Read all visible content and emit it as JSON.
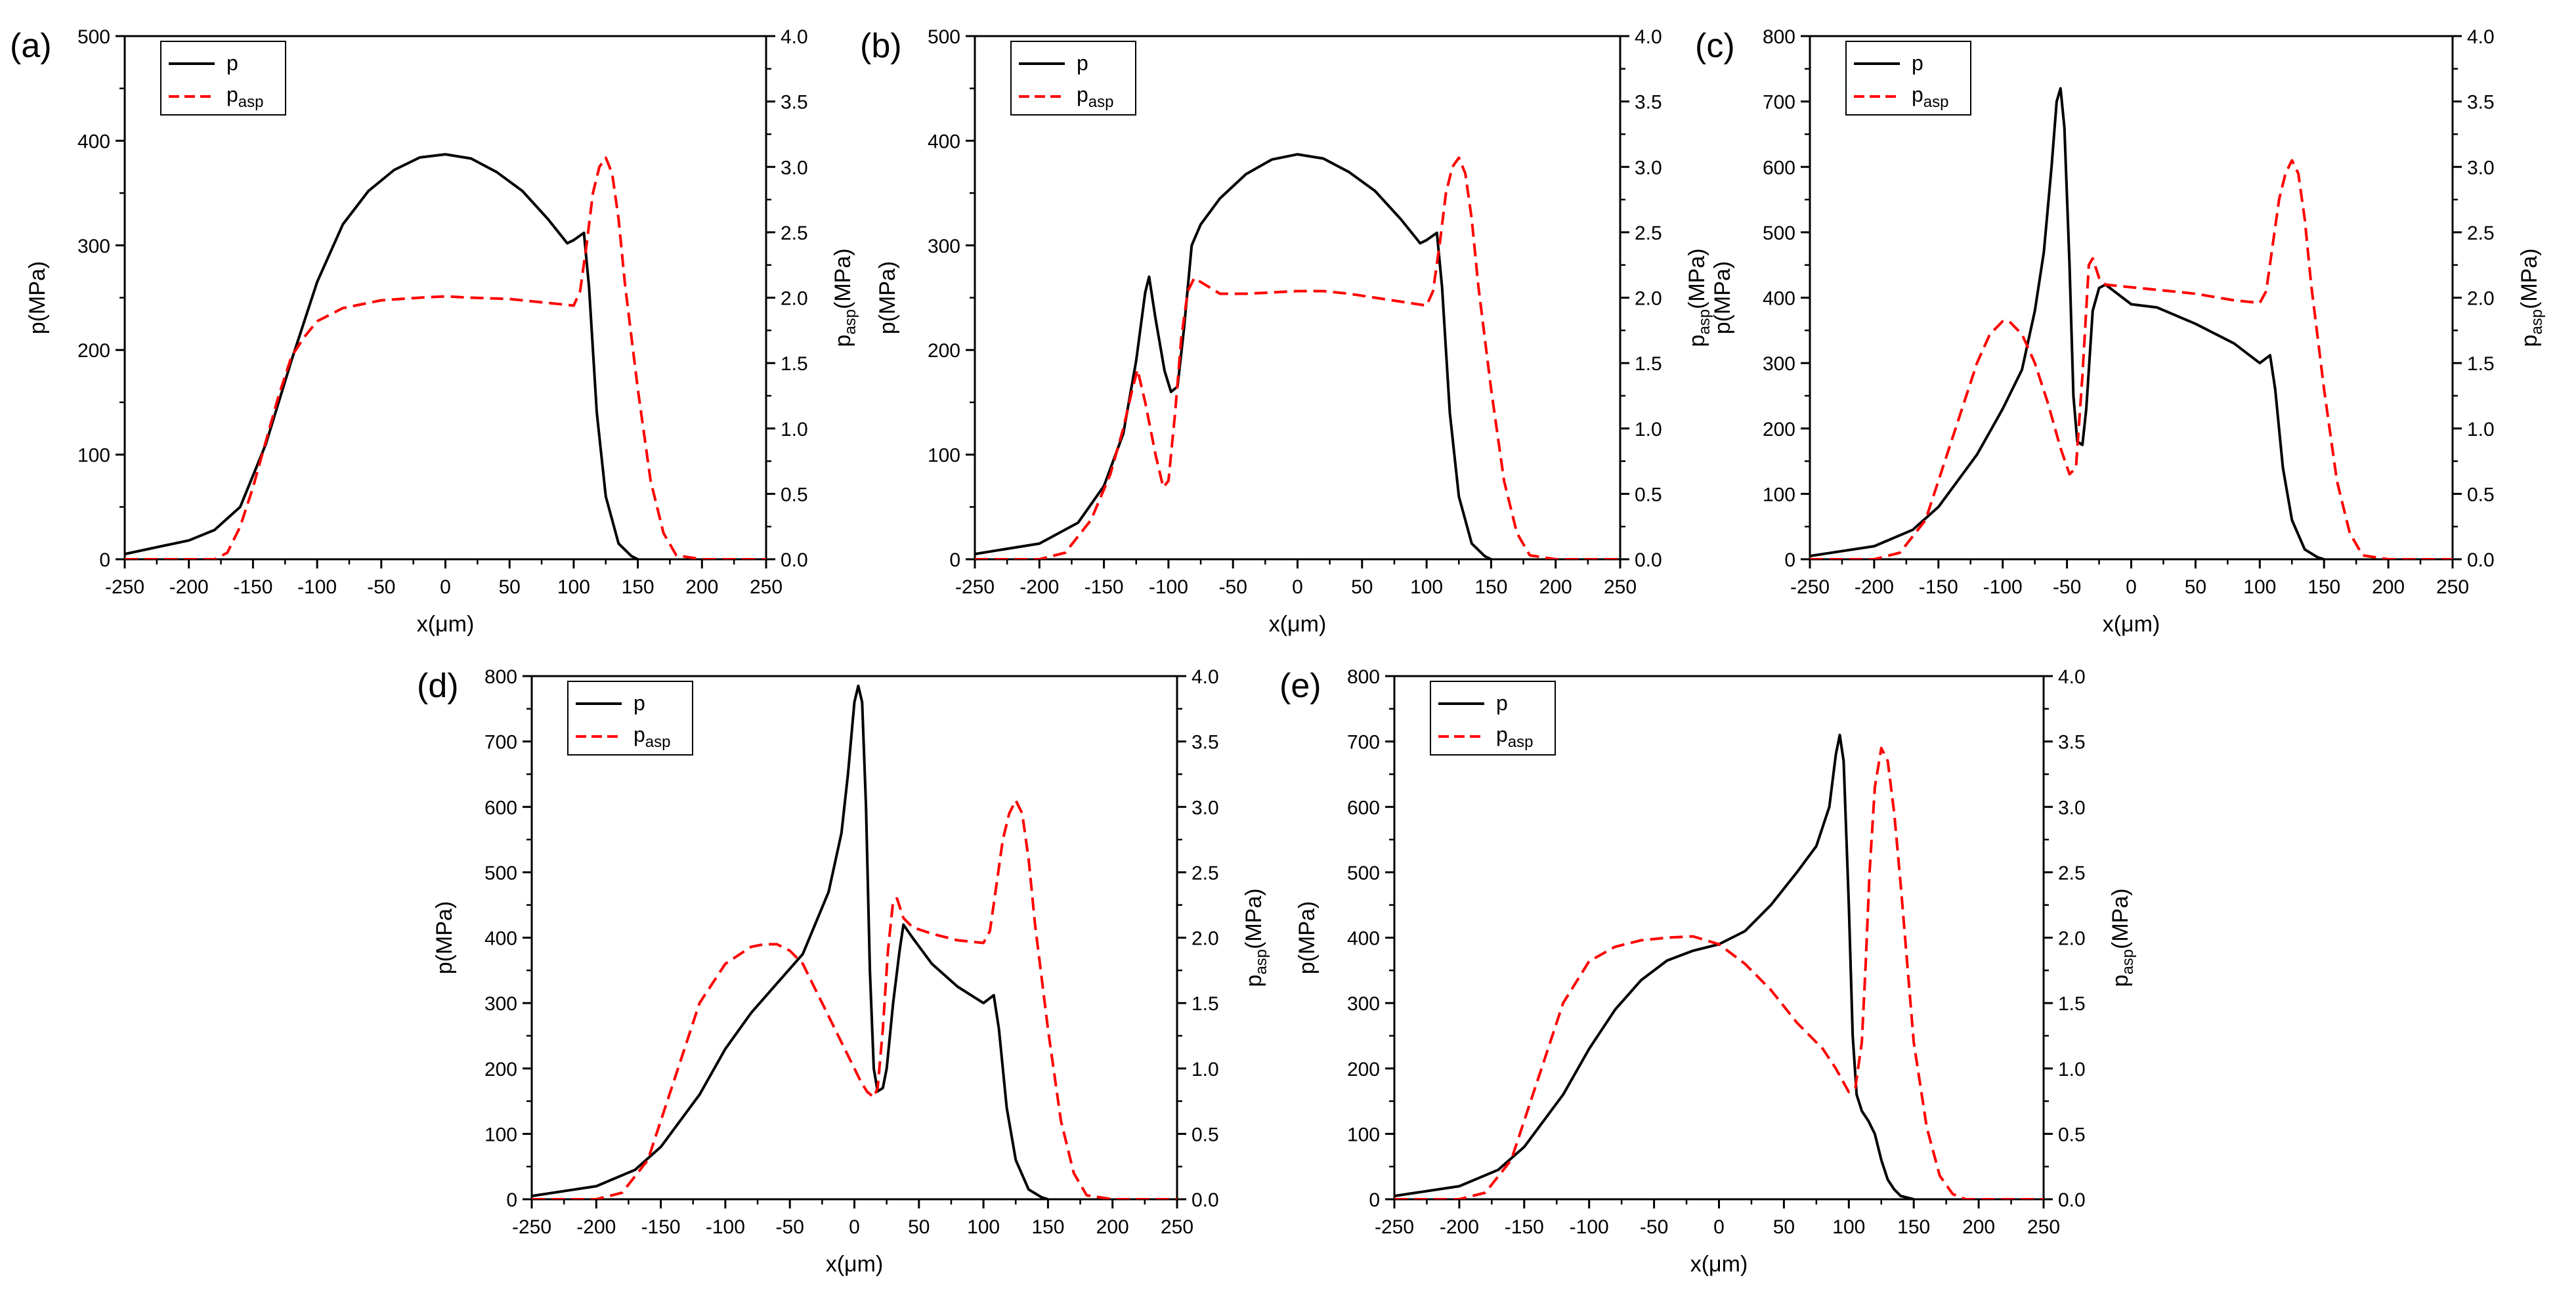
{
  "figure": {
    "legend_p": "p",
    "legend_pasp_base": "p",
    "legend_pasp_sub": "asp",
    "xlabel": "x(μm)",
    "ylabel_left": "p(MPa)",
    "ylabel_right_base": "p",
    "ylabel_right_sub": "asp",
    "ylabel_right_unit": "(MPa)",
    "colors": {
      "p": "#000000",
      "pasp": "#ff0000"
    }
  },
  "chart_data": [
    {
      "panel_label": "(a)",
      "type": "line",
      "xlim": [
        -250,
        250
      ],
      "ylim_left": [
        0,
        500
      ],
      "ylim_right": [
        0,
        4.0
      ],
      "x_ticks": [
        "-250",
        "-200",
        "-150",
        "-100",
        "-50",
        "0",
        "50",
        "100",
        "150",
        "200",
        "250"
      ],
      "y_left_ticks": [
        "0",
        "100",
        "200",
        "300",
        "400",
        "500"
      ],
      "y_right_ticks": [
        "0.0",
        "0.5",
        "1.0",
        "1.5",
        "2.0",
        "2.5",
        "3.0",
        "3.5",
        "4.0"
      ],
      "legend_position": "top-left",
      "series": [
        {
          "name": "p",
          "axis": "left",
          "style": "solid",
          "x": [
            -250,
            -200,
            -180,
            -160,
            -140,
            -120,
            -100,
            -80,
            -60,
            -40,
            -20,
            0,
            20,
            40,
            60,
            80,
            95,
            100,
            108,
            112,
            118,
            125,
            135,
            145,
            150
          ],
          "y": [
            5,
            18,
            28,
            50,
            110,
            190,
            265,
            320,
            352,
            372,
            384,
            387,
            383,
            370,
            352,
            325,
            302,
            305,
            312,
            260,
            140,
            60,
            15,
            3,
            0
          ]
        },
        {
          "name": "pasp",
          "axis": "right",
          "style": "dashed",
          "x": [
            -250,
            -180,
            -170,
            -160,
            -150,
            -140,
            -130,
            -120,
            -110,
            -100,
            -80,
            -50,
            -20,
            0,
            20,
            50,
            80,
            100,
            105,
            110,
            115,
            120,
            125,
            130,
            135,
            140,
            150,
            160,
            170,
            180,
            200,
            250
          ],
          "y": [
            0,
            0,
            0.05,
            0.25,
            0.55,
            0.9,
            1.25,
            1.55,
            1.7,
            1.82,
            1.92,
            1.98,
            2.0,
            2.01,
            2.0,
            1.99,
            1.96,
            1.94,
            2.05,
            2.4,
            2.8,
            3.0,
            3.07,
            2.95,
            2.6,
            2.1,
            1.3,
            0.6,
            0.2,
            0.03,
            0,
            0
          ]
        }
      ]
    },
    {
      "panel_label": "(b)",
      "type": "line",
      "xlim": [
        -250,
        250
      ],
      "ylim_left": [
        0,
        500
      ],
      "ylim_right": [
        0,
        4.0
      ],
      "x_ticks": [
        "-250",
        "-200",
        "-150",
        "-100",
        "-50",
        "0",
        "50",
        "100",
        "150",
        "200",
        "250"
      ],
      "y_left_ticks": [
        "0",
        "100",
        "200",
        "300",
        "400",
        "500"
      ],
      "y_right_ticks": [
        "0.0",
        "0.5",
        "1.0",
        "1.5",
        "2.0",
        "2.5",
        "3.0",
        "3.5",
        "4.0"
      ],
      "legend_position": "top-left",
      "series": [
        {
          "name": "p",
          "axis": "left",
          "style": "solid",
          "x": [
            -250,
            -200,
            -170,
            -150,
            -135,
            -125,
            -118,
            -115,
            -110,
            -103,
            -98,
            -93,
            -88,
            -82,
            -75,
            -60,
            -40,
            -20,
            0,
            20,
            40,
            60,
            80,
            95,
            100,
            108,
            112,
            118,
            125,
            135,
            145,
            150
          ],
          "y": [
            5,
            15,
            35,
            70,
            120,
            190,
            255,
            270,
            230,
            180,
            160,
            165,
            220,
            300,
            320,
            345,
            368,
            382,
            387,
            383,
            370,
            352,
            325,
            302,
            305,
            312,
            260,
            140,
            60,
            15,
            3,
            0
          ]
        },
        {
          "name": "pasp",
          "axis": "right",
          "style": "dashed",
          "x": [
            -250,
            -200,
            -180,
            -160,
            -145,
            -135,
            -128,
            -124,
            -118,
            -110,
            -104,
            -100,
            -95,
            -90,
            -85,
            -80,
            -60,
            -40,
            -20,
            0,
            20,
            40,
            60,
            80,
            100,
            105,
            110,
            115,
            120,
            125,
            130,
            135,
            140,
            150,
            160,
            170,
            180,
            200,
            250
          ],
          "y": [
            0,
            0,
            0.05,
            0.3,
            0.65,
            1.0,
            1.3,
            1.45,
            1.2,
            0.8,
            0.55,
            0.6,
            1.1,
            1.7,
            2.05,
            2.15,
            2.03,
            2.03,
            2.04,
            2.05,
            2.05,
            2.03,
            2.0,
            1.97,
            1.94,
            2.05,
            2.4,
            2.8,
            3.0,
            3.07,
            2.95,
            2.6,
            2.1,
            1.3,
            0.6,
            0.2,
            0.03,
            0,
            0
          ]
        }
      ]
    },
    {
      "panel_label": "(c)",
      "type": "line",
      "xlim": [
        -250,
        250
      ],
      "ylim_left": [
        0,
        800
      ],
      "ylim_right": [
        0,
        4.0
      ],
      "x_ticks": [
        "-250",
        "-200",
        "-150",
        "-100",
        "-50",
        "0",
        "50",
        "100",
        "150",
        "200",
        "250"
      ],
      "y_left_ticks": [
        "0",
        "100",
        "200",
        "300",
        "400",
        "500",
        "600",
        "700",
        "800"
      ],
      "y_right_ticks": [
        "0.0",
        "0.5",
        "1.0",
        "1.5",
        "2.0",
        "2.5",
        "3.0",
        "3.5",
        "4.0"
      ],
      "legend_position": "top-left",
      "series": [
        {
          "name": "p",
          "axis": "left",
          "style": "solid",
          "x": [
            -250,
            -200,
            -170,
            -150,
            -120,
            -100,
            -85,
            -75,
            -68,
            -62,
            -58,
            -55,
            -52,
            -48,
            -45,
            -42,
            -38,
            -35,
            -30,
            -25,
            -20,
            0,
            20,
            50,
            80,
            100,
            108,
            112,
            118,
            125,
            135,
            145,
            150
          ],
          "y": [
            5,
            20,
            45,
            80,
            160,
            230,
            290,
            380,
            470,
            600,
            700,
            720,
            660,
            450,
            250,
            180,
            175,
            230,
            380,
            415,
            420,
            390,
            385,
            360,
            330,
            300,
            312,
            260,
            140,
            60,
            15,
            3,
            0
          ]
        },
        {
          "name": "pasp",
          "axis": "right",
          "style": "dashed",
          "x": [
            -250,
            -200,
            -180,
            -160,
            -140,
            -120,
            -110,
            -100,
            -95,
            -85,
            -75,
            -65,
            -55,
            -48,
            -43,
            -38,
            -33,
            -30,
            -25,
            -20,
            0,
            20,
            50,
            80,
            100,
            105,
            110,
            115,
            120,
            125,
            130,
            135,
            140,
            150,
            160,
            170,
            180,
            200,
            250
          ],
          "y": [
            0,
            0,
            0.05,
            0.3,
            0.9,
            1.5,
            1.72,
            1.82,
            1.82,
            1.72,
            1.5,
            1.2,
            0.85,
            0.65,
            0.7,
            1.4,
            2.25,
            2.3,
            2.15,
            2.1,
            2.08,
            2.06,
            2.03,
            1.98,
            1.96,
            2.05,
            2.4,
            2.75,
            2.95,
            3.05,
            2.95,
            2.6,
            2.1,
            1.3,
            0.6,
            0.2,
            0.03,
            0,
            0
          ]
        }
      ]
    },
    {
      "panel_label": "(d)",
      "type": "line",
      "xlim": [
        -250,
        250
      ],
      "ylim_left": [
        0,
        800
      ],
      "ylim_right": [
        0,
        4.0
      ],
      "x_ticks": [
        "-250",
        "-200",
        "-150",
        "-100",
        "-50",
        "0",
        "50",
        "100",
        "150",
        "200",
        "250"
      ],
      "y_left_ticks": [
        "0",
        "100",
        "200",
        "300",
        "400",
        "500",
        "600",
        "700",
        "800"
      ],
      "y_right_ticks": [
        "0.0",
        "0.5",
        "1.0",
        "1.5",
        "2.0",
        "2.5",
        "3.0",
        "3.5",
        "4.0"
      ],
      "legend_position": "top-left",
      "series": [
        {
          "name": "p",
          "axis": "left",
          "style": "solid",
          "x": [
            -250,
            -200,
            -170,
            -150,
            -120,
            -100,
            -80,
            -60,
            -40,
            -20,
            -10,
            -5,
            0,
            3,
            6,
            9,
            12,
            15,
            18,
            22,
            25,
            30,
            35,
            38,
            45,
            60,
            80,
            100,
            108,
            112,
            118,
            125,
            135,
            145,
            150
          ],
          "y": [
            5,
            20,
            45,
            80,
            160,
            230,
            285,
            330,
            375,
            470,
            560,
            650,
            760,
            785,
            760,
            600,
            350,
            200,
            165,
            170,
            200,
            300,
            380,
            420,
            400,
            360,
            325,
            300,
            312,
            260,
            140,
            60,
            15,
            3,
            0
          ]
        },
        {
          "name": "pasp",
          "axis": "right",
          "style": "dashed",
          "x": [
            -250,
            -200,
            -180,
            -160,
            -140,
            -120,
            -100,
            -80,
            -70,
            -60,
            -50,
            -40,
            -30,
            -20,
            -10,
            0,
            5,
            10,
            15,
            18,
            22,
            26,
            30,
            33,
            38,
            45,
            60,
            80,
            100,
            105,
            110,
            115,
            120,
            125,
            130,
            135,
            140,
            150,
            160,
            170,
            180,
            200,
            250
          ],
          "y": [
            0,
            0,
            0.05,
            0.3,
            0.9,
            1.5,
            1.8,
            1.93,
            1.95,
            1.95,
            1.9,
            1.8,
            1.6,
            1.4,
            1.2,
            1.0,
            0.9,
            0.82,
            0.78,
            0.85,
            1.3,
            1.9,
            2.28,
            2.3,
            2.15,
            2.08,
            2.03,
            1.98,
            1.96,
            2.05,
            2.4,
            2.75,
            2.95,
            3.05,
            2.95,
            2.6,
            2.1,
            1.3,
            0.6,
            0.2,
            0.03,
            0,
            0
          ]
        }
      ]
    },
    {
      "panel_label": "(e)",
      "type": "line",
      "xlim": [
        -250,
        250
      ],
      "ylim_left": [
        0,
        800
      ],
      "ylim_right": [
        0,
        4.0
      ],
      "x_ticks": [
        "-250",
        "-200",
        "-150",
        "-100",
        "-50",
        "0",
        "50",
        "100",
        "150",
        "200",
        "250"
      ],
      "y_left_ticks": [
        "0",
        "100",
        "200",
        "300",
        "400",
        "500",
        "600",
        "700",
        "800"
      ],
      "y_right_ticks": [
        "0.0",
        "0.5",
        "1.0",
        "1.5",
        "2.0",
        "2.5",
        "3.0",
        "3.5",
        "4.0"
      ],
      "legend_position": "top-left",
      "series": [
        {
          "name": "p",
          "axis": "left",
          "style": "solid",
          "x": [
            -250,
            -200,
            -170,
            -150,
            -120,
            -100,
            -80,
            -60,
            -40,
            -20,
            0,
            20,
            40,
            60,
            75,
            85,
            90,
            93,
            96,
            100,
            103,
            106,
            110,
            115,
            120,
            125,
            130,
            135,
            140,
            150
          ],
          "y": [
            5,
            20,
            45,
            80,
            160,
            230,
            290,
            335,
            365,
            380,
            390,
            410,
            450,
            500,
            540,
            600,
            680,
            710,
            670,
            450,
            250,
            160,
            135,
            120,
            100,
            60,
            30,
            15,
            5,
            0
          ]
        },
        {
          "name": "pasp",
          "axis": "right",
          "style": "dashed",
          "x": [
            -250,
            -200,
            -180,
            -160,
            -140,
            -120,
            -100,
            -80,
            -60,
            -40,
            -20,
            0,
            20,
            40,
            60,
            80,
            90,
            100,
            105,
            110,
            113,
            116,
            120,
            125,
            130,
            135,
            140,
            145,
            150,
            160,
            170,
            180,
            190,
            200,
            250
          ],
          "y": [
            0,
            0,
            0.05,
            0.3,
            0.9,
            1.5,
            1.82,
            1.93,
            1.98,
            2.0,
            2.01,
            1.95,
            1.8,
            1.6,
            1.35,
            1.15,
            1.0,
            0.82,
            0.85,
            1.2,
            1.8,
            2.5,
            3.15,
            3.45,
            3.35,
            2.95,
            2.4,
            1.8,
            1.2,
            0.55,
            0.18,
            0.04,
            0,
            0,
            0
          ]
        }
      ]
    }
  ]
}
